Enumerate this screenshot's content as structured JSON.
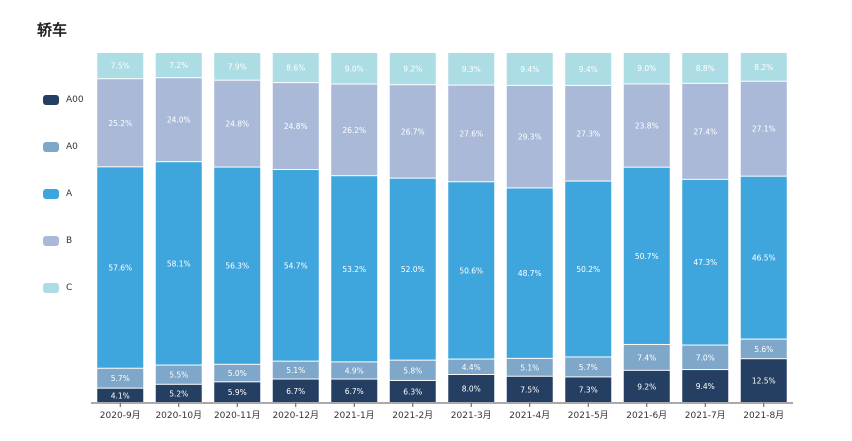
{
  "chart_data": {
    "type": "bar",
    "stacked": true,
    "title": "轿车",
    "categories": [
      "2020-9月",
      "2020-10月",
      "2020-11月",
      "2020-12月",
      "2021-1月",
      "2021-2月",
      "2021-3月",
      "2021-4月",
      "2021-5月",
      "2021-6月",
      "2021-7月",
      "2021-8月"
    ],
    "series": [
      {
        "name": "A00",
        "color": "#253f63",
        "labelColor": "#ffffff",
        "values": [
          4.1,
          5.2,
          5.9,
          6.7,
          6.7,
          6.3,
          8.0,
          7.5,
          7.3,
          9.2,
          9.4,
          12.5
        ],
        "labels": [
          "4.1%",
          "5.2%",
          "5.9%",
          "6.7%",
          "6.7%",
          "6.3%",
          "8.0%",
          "7.5%",
          "7.3%",
          "9.2%",
          "9.4%",
          "12.5%"
        ]
      },
      {
        "name": "A0",
        "color": "#7ea7c9",
        "labelColor": "#ffffff",
        "values": [
          5.7,
          5.5,
          5.0,
          5.1,
          4.9,
          5.8,
          4.4,
          5.1,
          5.7,
          7.4,
          7.0,
          5.6
        ],
        "labels": [
          "5.7%",
          "5.5%",
          "5.0%",
          "5.1%",
          "4.9%",
          "5.8%",
          "4.4%",
          "5.1%",
          "5.7%",
          "7.4%",
          "7.0%",
          "5.6%"
        ]
      },
      {
        "name": "A",
        "color": "#3fa6dd",
        "labelColor": "#ffffff",
        "values": [
          57.6,
          58.1,
          56.3,
          54.7,
          53.2,
          52.0,
          50.6,
          48.7,
          50.2,
          50.7,
          47.3,
          46.5
        ],
        "labels": [
          "57.6%",
          "58.1%",
          "56.3%",
          "54.7%",
          "53.2%",
          "52.0%",
          "50.6%",
          "48.7%",
          "50.2%",
          "50.7%",
          "47.3%",
          "46.5%"
        ]
      },
      {
        "name": "B",
        "color": "#aab9d8",
        "labelColor": "#ffffff",
        "values": [
          25.2,
          24.0,
          24.8,
          24.8,
          26.2,
          26.7,
          27.6,
          29.3,
          27.3,
          23.8,
          27.4,
          27.1
        ],
        "labels": [
          "25.2%",
          "24.0%",
          "24.8%",
          "24.8%",
          "26.2%",
          "26.7%",
          "27.6%",
          "29.3%",
          "27.3%",
          "23.8%",
          "27.4%",
          "27.1%"
        ]
      },
      {
        "name": "C",
        "color": "#acdce4",
        "labelColor": "#ffffff",
        "values": [
          7.5,
          7.2,
          7.9,
          8.6,
          9.0,
          9.2,
          9.3,
          9.4,
          9.4,
          9.0,
          8.8,
          8.2
        ],
        "labels": [
          "7.5%",
          "7.2%",
          "7.9%",
          "8.6%",
          "9.0%",
          "9.2%",
          "9.3%",
          "9.4%",
          "9.4%",
          "9.0%",
          "8.8%",
          "8.2%"
        ]
      }
    ],
    "ylim": [
      0,
      100
    ],
    "grid": false,
    "legend_position": "left"
  }
}
